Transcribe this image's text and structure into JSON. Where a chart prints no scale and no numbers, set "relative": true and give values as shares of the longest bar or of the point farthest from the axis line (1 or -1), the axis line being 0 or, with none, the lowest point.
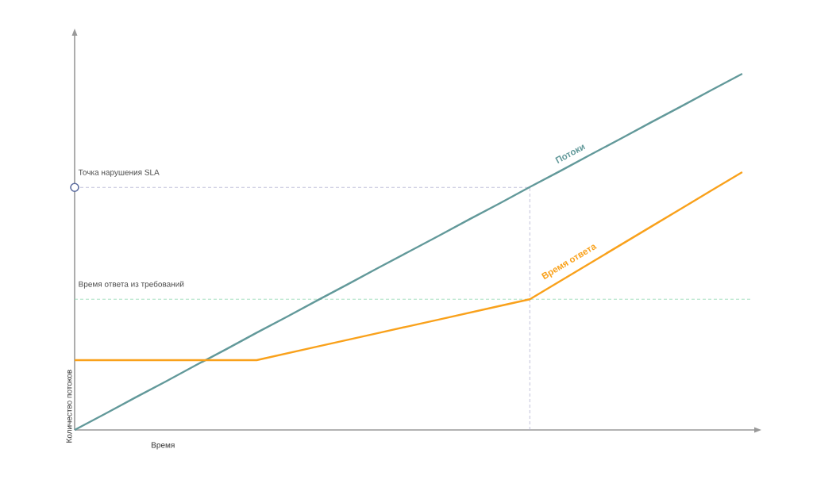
{
  "chart_data": {
    "type": "line",
    "relative": true,
    "xlabel": "Время",
    "ylabel": "Количество потоков",
    "line_style": "solid",
    "marker": "none",
    "categories": [
      null,
      null,
      null,
      null,
      null,
      null,
      null,
      null,
      null,
      null,
      null,
      null,
      null,
      null,
      null,
      null,
      null,
      null,
      null,
      null,
      null,
      null,
      null
    ],
    "series": [
      {
        "name": "Потоки",
        "color": "#62999a",
        "values": [
          0,
          0.045,
          0.091,
          0.136,
          0.182,
          0.227,
          0.273,
          0.318,
          0.364,
          0.409,
          0.455,
          0.5,
          0.545,
          0.591,
          0.636,
          0.682,
          0.727,
          0.773,
          0.818,
          0.864,
          0.909,
          0.955,
          1
        ]
      },
      {
        "name": "Время ответа",
        "color": "#f9a11b",
        "values": [
          0.196,
          0.196,
          0.196,
          0.196,
          0.196,
          0.196,
          0.196,
          0.215,
          0.234,
          0.253,
          0.272,
          0.291,
          0.31,
          0.329,
          0.348,
          0.367,
          0.418,
          0.469,
          0.52,
          0.571,
          0.622,
          0.673,
          0.724
        ]
      }
    ],
    "ref_lines": [
      {
        "axis": "y",
        "value": 0.681,
        "label": "Точка нарушения  SLA",
        "color": "#b3b3d1",
        "line_style": "dashed"
      },
      {
        "axis": "y",
        "value": 0.367,
        "label": "Время ответа из требований",
        "color": "#92d8b2",
        "line_style": "dashed"
      }
    ]
  }
}
